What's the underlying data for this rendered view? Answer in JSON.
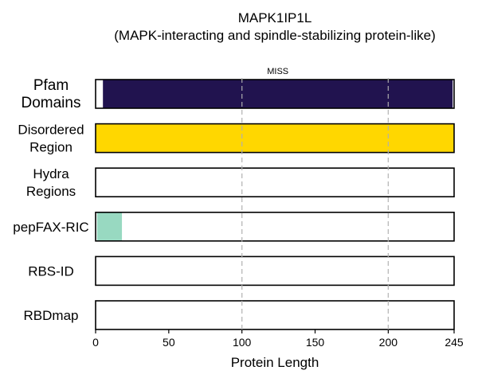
{
  "chart_data": {
    "type": "bar",
    "title": "MAPK1IP1L",
    "subtitle": "(MAPK-interacting and spindle-stabilizing protein-like)",
    "xlabel": "Protein Length",
    "ylabel": "",
    "xlim": [
      0,
      245
    ],
    "xticks": [
      0,
      50,
      100,
      150,
      200,
      245
    ],
    "grid": false,
    "dashed_reference_lines": [
      100,
      200
    ],
    "tracks": [
      {
        "label": "Pfam\nDomains",
        "segments": [
          {
            "start": 5,
            "end": 244,
            "color": "#21134f",
            "label": "MISS"
          }
        ]
      },
      {
        "label": "Disordered\nRegion",
        "segments": [
          {
            "start": 0,
            "end": 245,
            "color": "#ffd700"
          }
        ]
      },
      {
        "label": "Hydra\nRegions",
        "segments": []
      },
      {
        "label": "pepFAX-RIC",
        "segments": [
          {
            "start": 1,
            "end": 18,
            "color": "#98d9c1"
          }
        ]
      },
      {
        "label": "RBS-ID",
        "segments": []
      },
      {
        "label": "RBDmap",
        "segments": []
      }
    ]
  }
}
